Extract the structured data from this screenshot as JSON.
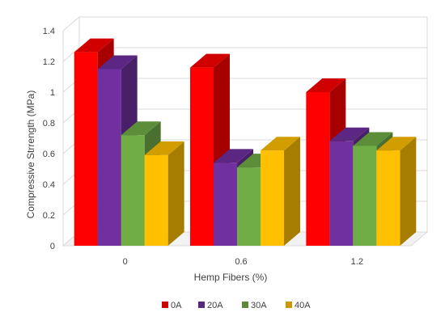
{
  "chart_data": {
    "type": "bar",
    "title": "",
    "xlabel": "Hemp Fibers (%)",
    "ylabel": "Compressive Strrength (MPa)",
    "categories": [
      "0",
      "0.6",
      "1.2"
    ],
    "ylim": [
      0,
      1.4
    ],
    "yticks": [
      "0",
      "0.2",
      "0.4",
      "0.6",
      "0.8",
      "1",
      "1.2",
      "1.4"
    ],
    "grid": true,
    "three_d": true,
    "legend_position": "bottom",
    "series": [
      {
        "name": "0A",
        "values": [
          1.26,
          1.16,
          1.0
        ],
        "color": "#ff0000"
      },
      {
        "name": "20A",
        "values": [
          1.15,
          0.54,
          0.68
        ],
        "color": "#7030a0"
      },
      {
        "name": "30A",
        "values": [
          0.72,
          0.51,
          0.65
        ],
        "color": "#70ad47"
      },
      {
        "name": "40A",
        "values": [
          0.59,
          0.62,
          0.62
        ],
        "color": "#ffc000"
      }
    ]
  }
}
